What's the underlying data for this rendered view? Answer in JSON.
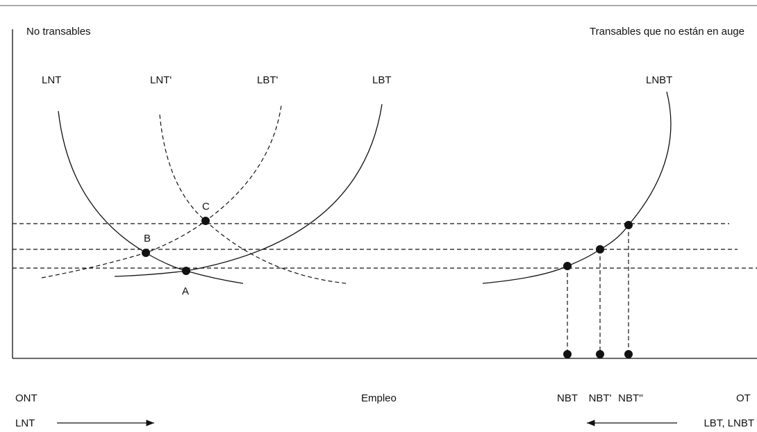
{
  "header": {
    "left": "No transables",
    "right": "Transables que no están en auge"
  },
  "curves": {
    "lnt": "LNT",
    "lnt_prime": "LNT'",
    "lbt_prime": "LBT'",
    "lbt": "LBT",
    "lnbt": "LNBT"
  },
  "points": {
    "c": "C",
    "b": "B",
    "a": "A"
  },
  "axis": {
    "origin_left": "ONT",
    "label": "Empleo",
    "nbt": "NBT",
    "nbt_prime": "NBT'",
    "nbt_double": "NBT''",
    "origin_right": "OT"
  },
  "arrows": {
    "left": "LNT",
    "right": "LBT, LNBT"
  }
}
